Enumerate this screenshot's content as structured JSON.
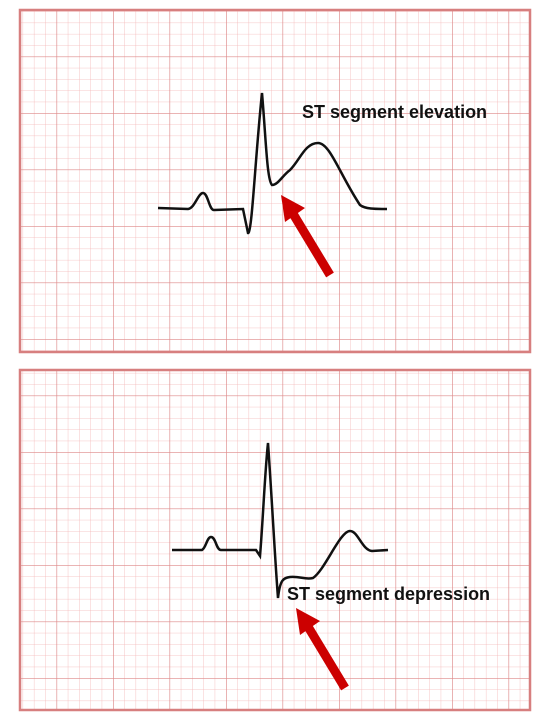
{
  "panels": [
    {
      "label": "ST segment elevation"
    },
    {
      "label": "ST segment depression"
    }
  ]
}
